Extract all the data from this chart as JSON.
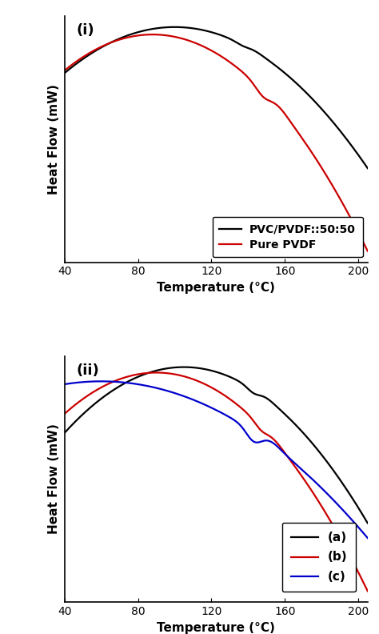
{
  "xlim": [
    40,
    205
  ],
  "xticks": [
    40,
    80,
    120,
    160,
    200
  ],
  "xlabel": "Temperature (°C)",
  "ylabel": "Heat Flow (mW)",
  "panel_i_label": "(i)",
  "panel_ii_label": "(ii)",
  "legend_i": [
    "PVC/PVDF::50:50",
    "Pure PVDF"
  ],
  "legend_ii": [
    "(a)",
    "(b)",
    "(c)"
  ],
  "colors_i": [
    "#000000",
    "#cc0000"
  ],
  "colors_ii": [
    "#000000",
    "#cc0000",
    "#0000cc"
  ],
  "background": "#ffffff",
  "linewidth": 1.6
}
